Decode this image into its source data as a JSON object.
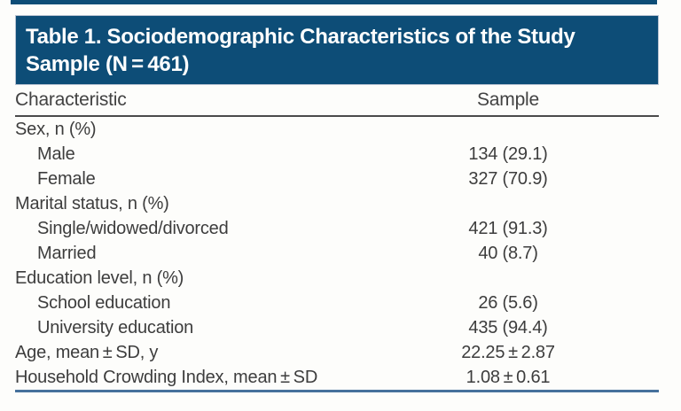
{
  "page": {
    "background": "#fdfdfb",
    "accent_navy": "#0d4d77",
    "accent_blue_rule": "#46719c",
    "header_rule_gray": "#4b4b4b"
  },
  "table": {
    "title": "Table 1. Sociodemographic Characteristics of the Study Sample (N = 461)",
    "columns": {
      "characteristic": "Characteristic",
      "sample": "Sample"
    },
    "rows": [
      {
        "label": "Sex, n (%)",
        "value": "",
        "indent": false
      },
      {
        "label": "Male",
        "value": "134 (29.1)",
        "indent": true
      },
      {
        "label": "Female",
        "value": "327 (70.9)",
        "indent": true
      },
      {
        "label": "Marital status, n (%)",
        "value": "",
        "indent": false
      },
      {
        "label": "Single/widowed/divorced",
        "value": "421 (91.3)",
        "indent": true
      },
      {
        "label": "Married",
        "value": "40 (8.7)",
        "indent": true
      },
      {
        "label": "Education level, n (%)",
        "value": "",
        "indent": false
      },
      {
        "label": "School education",
        "value": "26 (5.6)",
        "indent": true
      },
      {
        "label": "University education",
        "value": "435 (94.4)",
        "indent": true
      },
      {
        "label": "Age, mean ± SD, y",
        "value": "22.25 ± 2.87",
        "indent": false
      },
      {
        "label": "Household Crowding Index, mean ± SD",
        "value": "1.08 ± 0.61",
        "indent": false
      }
    ]
  }
}
